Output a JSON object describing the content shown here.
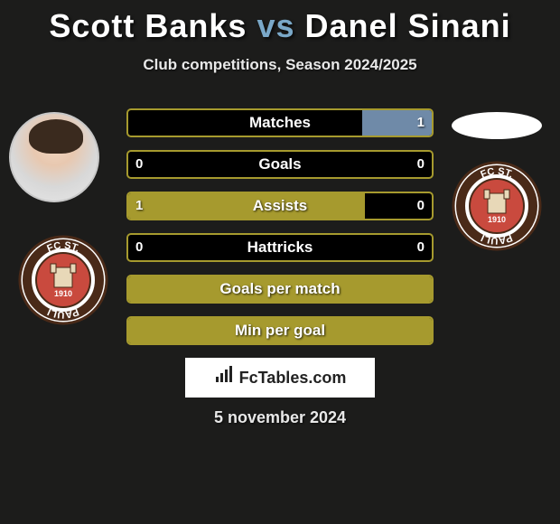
{
  "title": {
    "player1": "Scott Banks",
    "vs": "vs",
    "player2": "Danel Sinani"
  },
  "subtitle": "Club competitions, Season 2024/2025",
  "accent_color": "#a69a2e",
  "right_fill_color": "#6f8aa8",
  "border_color": "#a69a2e",
  "background_color": "#1c1c1b",
  "stats": [
    {
      "label": "Matches",
      "left_val": "",
      "right_val": "1",
      "left_pct": 0,
      "right_pct": 23,
      "show_left": false,
      "show_right": true
    },
    {
      "label": "Goals",
      "left_val": "0",
      "right_val": "0",
      "left_pct": 0,
      "right_pct": 0,
      "show_left": true,
      "show_right": true
    },
    {
      "label": "Assists",
      "left_val": "1",
      "right_val": "0",
      "left_pct": 78,
      "right_pct": 0,
      "show_left": true,
      "show_right": true
    },
    {
      "label": "Hattricks",
      "left_val": "0",
      "right_val": "0",
      "left_pct": 0,
      "right_pct": 0,
      "show_left": true,
      "show_right": true
    },
    {
      "label": "Goals per match",
      "left_val": "",
      "right_val": "",
      "left_pct": 100,
      "right_pct": 0,
      "show_left": false,
      "show_right": false
    },
    {
      "label": "Min per goal",
      "left_val": "",
      "right_val": "",
      "left_pct": 100,
      "right_pct": 0,
      "show_left": false,
      "show_right": false
    }
  ],
  "badge": {
    "outer_text_top": "FC ST.",
    "outer_text_bottom": "PAULI",
    "year": "1910",
    "ring_color": "#4a2a18",
    "outer_bg": "#ffffff",
    "inner_bg": "#c94a3e"
  },
  "watermark": {
    "icon": "⁝⫶",
    "text": "FcTables.com"
  },
  "date": "5 november 2024"
}
